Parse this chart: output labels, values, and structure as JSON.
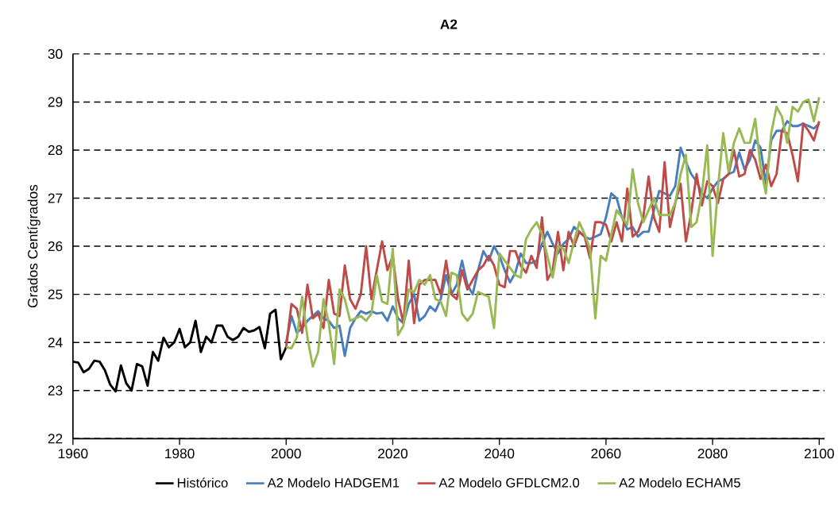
{
  "chart_data": {
    "type": "line",
    "title": "A2",
    "ylabel": "Grados Centígrados",
    "xlim": [
      1960,
      2101
    ],
    "ylim": [
      22,
      30
    ],
    "xticks": [
      1960,
      1980,
      2000,
      2020,
      2040,
      2060,
      2080,
      2100
    ],
    "yticks": [
      22,
      23,
      24,
      25,
      26,
      27,
      28,
      29,
      30
    ],
    "grid": "y",
    "legend": "bottom",
    "marker": "none",
    "line_style": "solid",
    "series": [
      {
        "name": "Histórico",
        "color": "#000000",
        "x": [
          1960,
          1961,
          1962,
          1963,
          1964,
          1965,
          1966,
          1967,
          1968,
          1969,
          1970,
          1971,
          1972,
          1973,
          1974,
          1975,
          1976,
          1977,
          1978,
          1979,
          1980,
          1981,
          1982,
          1983,
          1984,
          1985,
          1986,
          1987,
          1988,
          1989,
          1990,
          1991,
          1992,
          1993,
          1994,
          1995,
          1996,
          1997,
          1998,
          1999,
          2000
        ],
        "values": [
          23.6,
          23.58,
          23.38,
          23.45,
          23.62,
          23.6,
          23.42,
          23.12,
          22.98,
          23.52,
          23.15,
          23.0,
          23.55,
          23.5,
          23.1,
          23.8,
          23.62,
          24.1,
          23.9,
          24.0,
          24.28,
          23.9,
          24.0,
          24.45,
          23.8,
          24.12,
          24.0,
          24.35,
          24.35,
          24.12,
          24.05,
          24.12,
          24.3,
          24.22,
          24.25,
          24.32,
          23.88,
          24.6,
          24.68,
          23.65,
          23.9
        ]
      },
      {
        "name": "A2 Modelo HADGEM1",
        "color": "#4a7ebb",
        "x": [
          2000,
          2001,
          2002,
          2003,
          2004,
          2005,
          2006,
          2007,
          2008,
          2009,
          2010,
          2011,
          2012,
          2013,
          2014,
          2015,
          2016,
          2017,
          2018,
          2019,
          2020,
          2021,
          2022,
          2023,
          2024,
          2025,
          2026,
          2027,
          2028,
          2029,
          2030,
          2031,
          2032,
          2033,
          2034,
          2035,
          2036,
          2037,
          2038,
          2039,
          2040,
          2041,
          2042,
          2043,
          2044,
          2045,
          2046,
          2047,
          2048,
          2049,
          2050,
          2051,
          2052,
          2053,
          2054,
          2055,
          2056,
          2057,
          2058,
          2059,
          2060,
          2061,
          2062,
          2063,
          2064,
          2065,
          2066,
          2067,
          2068,
          2069,
          2070,
          2071,
          2072,
          2073,
          2074,
          2075,
          2076,
          2077,
          2078,
          2079,
          2080,
          2081,
          2082,
          2083,
          2084,
          2085,
          2086,
          2087,
          2088,
          2089,
          2090,
          2091,
          2092,
          2093,
          2094,
          2095,
          2096,
          2097,
          2098,
          2099,
          2100
        ],
        "values": [
          24.0,
          24.55,
          24.2,
          24.3,
          24.45,
          24.55,
          24.65,
          24.5,
          24.45,
          24.3,
          24.35,
          23.72,
          24.3,
          24.5,
          24.65,
          24.6,
          24.65,
          24.6,
          24.62,
          24.45,
          24.75,
          24.5,
          24.4,
          24.8,
          25.0,
          24.45,
          24.55,
          24.75,
          24.65,
          24.9,
          25.4,
          25.0,
          25.2,
          25.7,
          25.2,
          25.0,
          25.5,
          25.9,
          25.7,
          26.0,
          25.8,
          25.5,
          25.25,
          25.45,
          25.85,
          25.65,
          25.65,
          25.7,
          26.05,
          26.3,
          26.05,
          25.85,
          26.05,
          26.15,
          26.4,
          26.3,
          26.2,
          26.15,
          26.2,
          26.25,
          26.6,
          27.1,
          27.0,
          26.6,
          26.35,
          26.4,
          26.2,
          26.3,
          26.3,
          26.75,
          27.15,
          27.1,
          27.05,
          27.25,
          28.05,
          27.75,
          27.5,
          27.35,
          27.1,
          27.0,
          27.2,
          27.35,
          27.4,
          27.5,
          27.55,
          27.95,
          27.6,
          27.8,
          28.2,
          28.05,
          27.3,
          28.2,
          28.4,
          28.4,
          28.6,
          28.5,
          28.5,
          28.55,
          28.5,
          28.45,
          28.55
        ]
      },
      {
        "name": "A2 Modelo GFDLCM2.0",
        "color": "#be4b48",
        "x": [
          2000,
          2001,
          2002,
          2003,
          2004,
          2005,
          2006,
          2007,
          2008,
          2009,
          2010,
          2011,
          2012,
          2013,
          2014,
          2015,
          2016,
          2017,
          2018,
          2019,
          2020,
          2021,
          2022,
          2023,
          2024,
          2025,
          2026,
          2027,
          2028,
          2029,
          2030,
          2031,
          2032,
          2033,
          2034,
          2035,
          2036,
          2037,
          2038,
          2039,
          2040,
          2041,
          2042,
          2043,
          2044,
          2045,
          2046,
          2047,
          2048,
          2049,
          2050,
          2051,
          2052,
          2053,
          2054,
          2055,
          2056,
          2057,
          2058,
          2059,
          2060,
          2061,
          2062,
          2063,
          2064,
          2065,
          2066,
          2067,
          2068,
          2069,
          2070,
          2071,
          2072,
          2073,
          2074,
          2075,
          2076,
          2077,
          2078,
          2079,
          2080,
          2081,
          2082,
          2083,
          2084,
          2085,
          2086,
          2087,
          2088,
          2089,
          2090,
          2091,
          2092,
          2093,
          2094,
          2095,
          2096,
          2097,
          2098,
          2099,
          2100
        ],
        "values": [
          23.9,
          24.8,
          24.7,
          24.2,
          25.2,
          24.5,
          24.6,
          24.3,
          25.3,
          24.6,
          24.55,
          25.6,
          24.9,
          24.7,
          25.0,
          26.0,
          24.9,
          25.5,
          26.1,
          25.5,
          25.8,
          24.9,
          24.4,
          25.7,
          24.4,
          25.2,
          25.3,
          25.3,
          25.3,
          25.0,
          25.7,
          25.0,
          24.9,
          25.5,
          25.1,
          25.3,
          25.5,
          25.6,
          25.8,
          25.6,
          25.2,
          25.15,
          25.9,
          25.9,
          25.6,
          25.45,
          25.8,
          25.55,
          26.6,
          25.3,
          25.5,
          26.3,
          25.5,
          26.3,
          26.0,
          26.3,
          26.2,
          25.75,
          26.5,
          26.5,
          26.45,
          26.1,
          26.5,
          26.1,
          27.2,
          26.2,
          26.3,
          26.6,
          27.45,
          26.6,
          26.3,
          27.75,
          26.4,
          26.9,
          27.3,
          26.1,
          26.7,
          27.5,
          26.85,
          27.35,
          27.25,
          26.9,
          27.4,
          27.5,
          28.0,
          27.45,
          27.5,
          28.0,
          27.8,
          27.4,
          27.7,
          27.25,
          27.5,
          28.4,
          28.35,
          27.9,
          27.35,
          28.55,
          28.4,
          28.2,
          28.6
        ]
      },
      {
        "name": "A2 Modelo ECHAM5",
        "color": "#98b954",
        "x": [
          2000,
          2001,
          2002,
          2003,
          2004,
          2005,
          2006,
          2007,
          2008,
          2009,
          2010,
          2011,
          2012,
          2013,
          2014,
          2015,
          2016,
          2017,
          2018,
          2019,
          2020,
          2021,
          2022,
          2023,
          2024,
          2025,
          2026,
          2027,
          2028,
          2029,
          2030,
          2031,
          2032,
          2033,
          2034,
          2035,
          2036,
          2037,
          2038,
          2039,
          2040,
          2041,
          2042,
          2043,
          2044,
          2045,
          2046,
          2047,
          2048,
          2049,
          2050,
          2051,
          2052,
          2053,
          2054,
          2055,
          2056,
          2057,
          2058,
          2059,
          2060,
          2061,
          2062,
          2063,
          2064,
          2065,
          2066,
          2067,
          2068,
          2069,
          2070,
          2071,
          2072,
          2073,
          2074,
          2075,
          2076,
          2077,
          2078,
          2079,
          2080,
          2081,
          2082,
          2083,
          2084,
          2085,
          2086,
          2087,
          2088,
          2089,
          2090,
          2091,
          2092,
          2093,
          2094,
          2095,
          2096,
          2097,
          2098,
          2099,
          2100
        ],
        "values": [
          23.9,
          23.88,
          24.1,
          24.95,
          24.1,
          23.5,
          23.8,
          24.9,
          24.4,
          23.55,
          25.1,
          24.9,
          24.45,
          24.5,
          24.55,
          24.45,
          24.6,
          25.4,
          24.85,
          24.8,
          25.95,
          24.15,
          24.35,
          25.1,
          25.05,
          25.3,
          25.2,
          25.4,
          24.9,
          24.85,
          24.55,
          25.45,
          25.4,
          24.6,
          24.45,
          24.6,
          25.05,
          25.0,
          24.95,
          24.3,
          25.85,
          25.7,
          25.55,
          25.4,
          25.35,
          26.15,
          26.35,
          26.5,
          26.25,
          25.8,
          25.35,
          26.0,
          25.95,
          25.65,
          26.1,
          26.5,
          26.25,
          25.95,
          24.5,
          25.8,
          25.7,
          26.25,
          26.75,
          26.6,
          26.45,
          27.6,
          26.9,
          26.5,
          26.75,
          27.0,
          26.65,
          26.65,
          26.65,
          26.9,
          27.5,
          27.9,
          26.4,
          26.5,
          27.1,
          28.1,
          25.8,
          27.2,
          28.35,
          27.55,
          28.15,
          28.45,
          28.15,
          28.15,
          28.65,
          27.65,
          27.1,
          28.35,
          28.9,
          28.7,
          28.15,
          28.9,
          28.8,
          29.0,
          29.05,
          28.6,
          29.1
        ]
      }
    ]
  }
}
